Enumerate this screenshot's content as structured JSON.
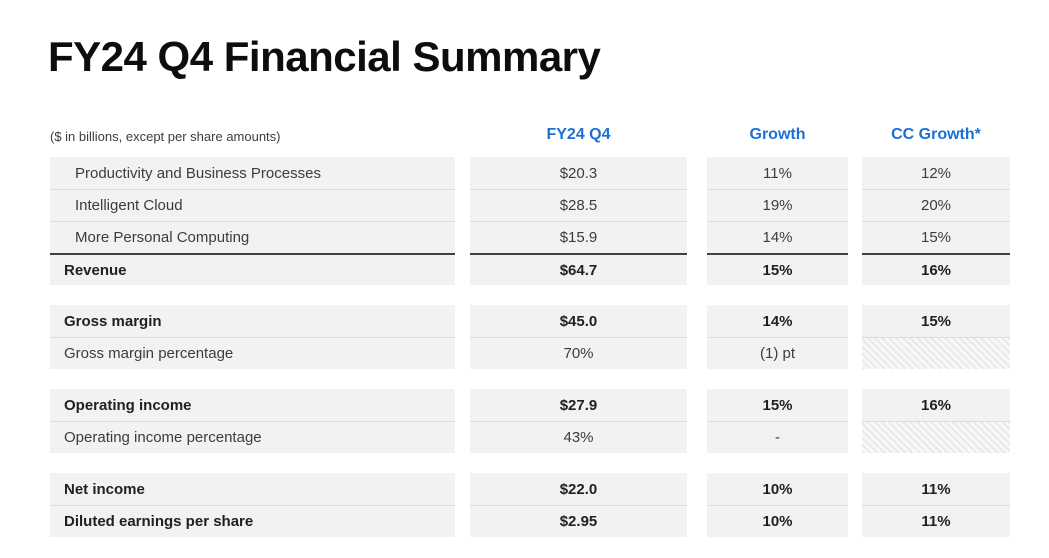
{
  "page": {
    "title": "FY24 Q4 Financial Summary"
  },
  "table": {
    "note": "($ in billions, except per share amounts)",
    "columns": [
      "FY24 Q4",
      "Growth",
      "CC Growth*"
    ],
    "accent_color": "#1b70d4",
    "cell_background": "#f2f2f2",
    "groups": [
      {
        "rows": [
          {
            "label": "Productivity and Business Processes",
            "style": "indent",
            "values": [
              "$20.3",
              "11%",
              "12%"
            ]
          },
          {
            "label": "Intelligent Cloud",
            "style": "indent",
            "values": [
              "$28.5",
              "19%",
              "20%"
            ]
          },
          {
            "label": "More Personal Computing",
            "style": "indent",
            "values": [
              "$15.9",
              "14%",
              "15%"
            ]
          },
          {
            "label": "Revenue",
            "style": "total",
            "values": [
              "$64.7",
              "15%",
              "16%"
            ]
          }
        ]
      },
      {
        "rows": [
          {
            "label": "Gross margin",
            "style": "bold",
            "values": [
              "$45.0",
              "14%",
              "15%"
            ]
          },
          {
            "label": "Gross margin percentage",
            "style": "regular",
            "values": [
              "70%",
              "(1) pt",
              null
            ]
          }
        ]
      },
      {
        "rows": [
          {
            "label": "Operating income",
            "style": "bold",
            "values": [
              "$27.9",
              "15%",
              "16%"
            ]
          },
          {
            "label": "Operating income percentage",
            "style": "regular",
            "values": [
              "43%",
              "-",
              null
            ]
          }
        ]
      },
      {
        "rows": [
          {
            "label": "Net income",
            "style": "bold",
            "values": [
              "$22.0",
              "10%",
              "11%"
            ]
          },
          {
            "label": "Diluted earnings per share",
            "style": "bold",
            "values": [
              "$2.95",
              "10%",
              "11%"
            ]
          }
        ]
      }
    ]
  }
}
